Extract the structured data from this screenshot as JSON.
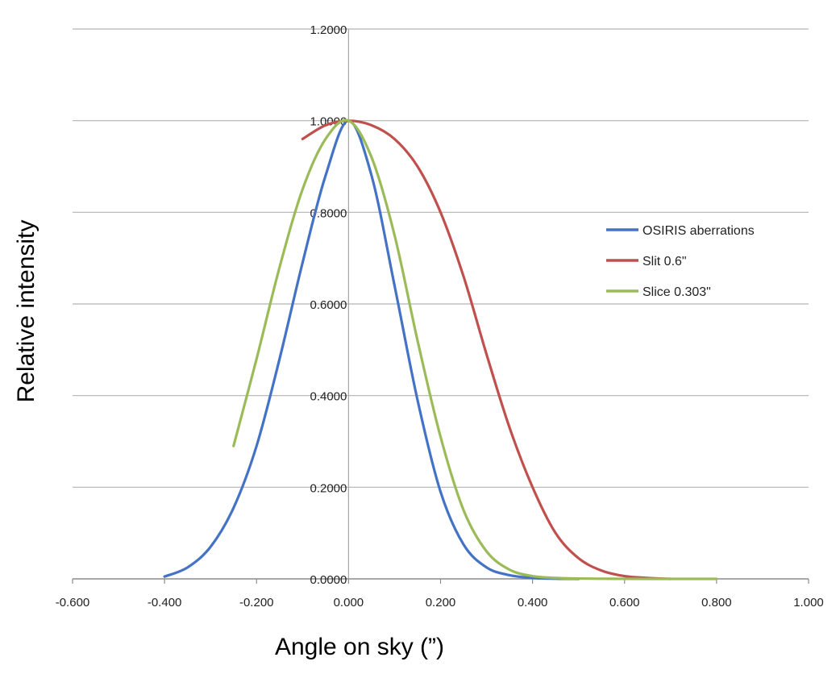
{
  "chart_data": {
    "type": "line",
    "title": "",
    "xlabel": "Angle on sky (”)",
    "ylabel": "Relative intensity",
    "xlim": [
      -0.6,
      1.0
    ],
    "ylim": [
      0,
      1.2
    ],
    "x_ticks": [
      "-0.600",
      "-0.400",
      "-0.200",
      "0.000",
      "0.200",
      "0.400",
      "0.600",
      "0.800",
      "1.000"
    ],
    "y_ticks": [
      "0.0000",
      "0.2000",
      "0.4000",
      "0.6000",
      "0.8000",
      "1.0000",
      "1.2000"
    ],
    "grid": "horizontal",
    "legend_position": "right",
    "series": [
      {
        "name": "OSIRIS aberrations",
        "color": "#4472C4",
        "x": [
          -0.4,
          -0.35,
          -0.3,
          -0.25,
          -0.2,
          -0.15,
          -0.1,
          -0.05,
          0.0,
          0.05,
          0.1,
          0.15,
          0.2,
          0.25,
          0.3,
          0.35,
          0.4,
          0.45,
          0.5
        ],
        "y": [
          0.005,
          0.025,
          0.07,
          0.155,
          0.29,
          0.48,
          0.69,
          0.88,
          1.0,
          0.88,
          0.64,
          0.39,
          0.19,
          0.075,
          0.025,
          0.008,
          0.002,
          0.0005,
          0.0
        ]
      },
      {
        "name": "Slit 0.6\"",
        "color": "#C0504D",
        "x": [
          -0.1,
          -0.05,
          0.0,
          0.05,
          0.1,
          0.15,
          0.2,
          0.25,
          0.3,
          0.35,
          0.4,
          0.45,
          0.5,
          0.55,
          0.6,
          0.65,
          0.7
        ],
        "y": [
          0.96,
          0.99,
          1.0,
          0.99,
          0.96,
          0.9,
          0.8,
          0.66,
          0.49,
          0.33,
          0.2,
          0.1,
          0.045,
          0.018,
          0.006,
          0.002,
          0.0
        ]
      },
      {
        "name": "Slice 0.303\"",
        "color": "#9BBB59",
        "x": [
          -0.25,
          -0.2,
          -0.15,
          -0.1,
          -0.05,
          0.0,
          0.05,
          0.1,
          0.15,
          0.2,
          0.25,
          0.3,
          0.35,
          0.4,
          0.45,
          0.5,
          0.55,
          0.6,
          0.65,
          0.7,
          0.8
        ],
        "y": [
          0.29,
          0.48,
          0.68,
          0.85,
          0.96,
          1.0,
          0.92,
          0.75,
          0.52,
          0.31,
          0.15,
          0.06,
          0.02,
          0.006,
          0.002,
          0.0008,
          0.0003,
          0.0001,
          0.0,
          0.0,
          0.0
        ]
      }
    ]
  }
}
